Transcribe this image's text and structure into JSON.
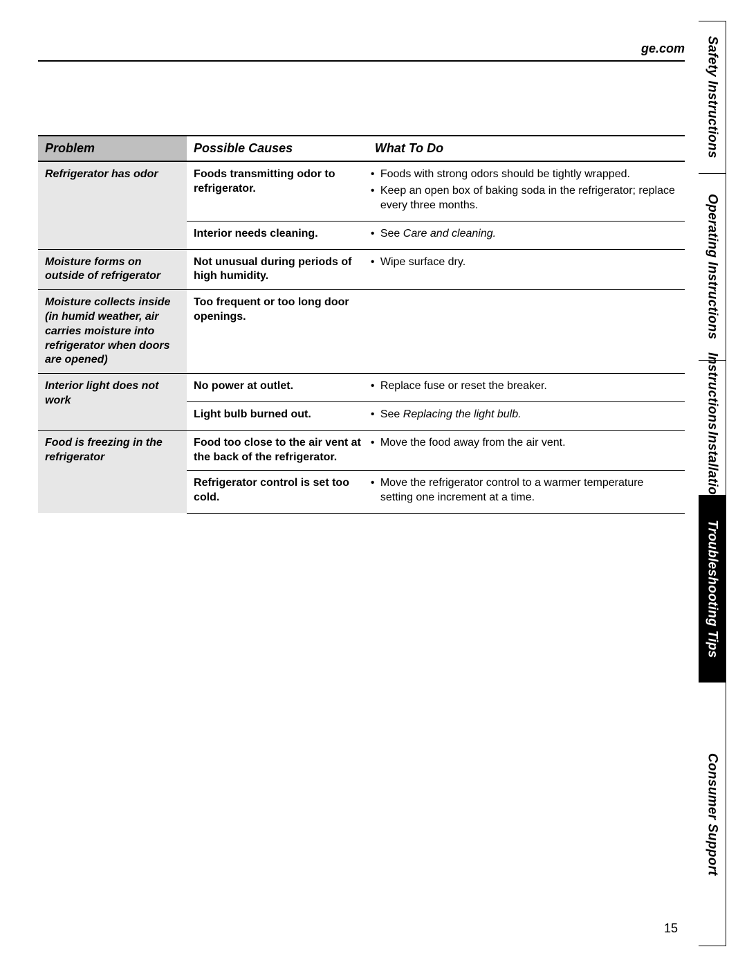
{
  "header": {
    "site": "ge.com"
  },
  "page_number": "15",
  "side_tabs": [
    {
      "label": "Safety Instructions",
      "active": false
    },
    {
      "label": "Operating Instructions",
      "active": false
    },
    {
      "line1": "Installation",
      "line2": "Instructions",
      "active": false,
      "two_line": true
    },
    {
      "label": "Troubleshooting Tips",
      "active": true
    },
    {
      "label": "Consumer Support",
      "active": false
    }
  ],
  "table": {
    "headers": {
      "problem": "Problem",
      "cause": "Possible Causes",
      "what": "What To Do"
    },
    "problems": [
      {
        "problem": "Refrigerator has odor",
        "rows": [
          {
            "cause": "Foods transmitting odor to refrigerator.",
            "actions": [
              {
                "text": "Foods with strong odors should be tightly wrapped."
              },
              {
                "text": "Keep an open box of baking soda in the refrigerator; replace every three months."
              }
            ]
          },
          {
            "cause": "Interior needs cleaning.",
            "actions": [
              {
                "prefix": "See ",
                "ref": "Care and cleaning."
              }
            ]
          }
        ]
      },
      {
        "problem": "Moisture forms on outside of refrigerator",
        "rows": [
          {
            "cause": "Not unusual during periods of high humidity.",
            "actions": [
              {
                "text": "Wipe surface dry."
              }
            ]
          }
        ]
      },
      {
        "problem": "Moisture collects inside (in humid weather, air carries moisture into refrigerator when doors are opened)",
        "rows": [
          {
            "cause": "Too frequent or too long door openings.",
            "actions": []
          }
        ]
      },
      {
        "problem": "Interior light does not work",
        "rows": [
          {
            "cause": "No power at outlet.",
            "actions": [
              {
                "text": "Replace fuse or reset the breaker."
              }
            ]
          },
          {
            "cause": "Light bulb burned out.",
            "actions": [
              {
                "prefix": "See ",
                "ref": "Replacing the light bulb."
              }
            ]
          }
        ]
      },
      {
        "problem": "Food is freezing in the refrigerator",
        "rows": [
          {
            "cause": "Food too close to the air vent at the back of the refrigerator.",
            "actions": [
              {
                "text": "Move the food away from the air vent."
              }
            ]
          },
          {
            "cause": "Refrigerator control is set too cold.",
            "actions": [
              {
                "text": "Move the refrigerator control to a warmer temperature setting one increment at a time."
              }
            ]
          }
        ]
      }
    ]
  },
  "tab_heights": {
    "safety": 220,
    "operating": 270,
    "installation": 195,
    "troubleshooting": 270,
    "consumer": 0
  }
}
